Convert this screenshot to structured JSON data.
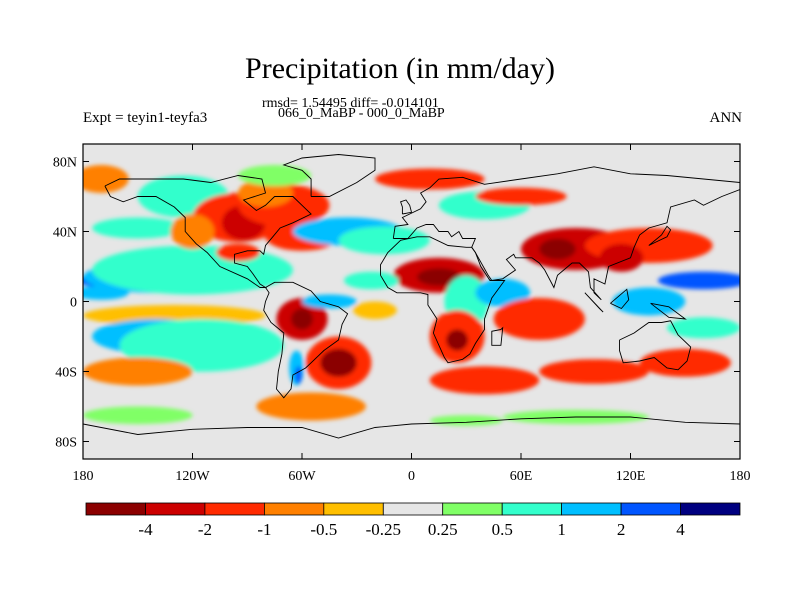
{
  "title": "Precipitation (in mm/day)",
  "stats_line": "rmsd= 1.54495 diff= -0.014101",
  "period_line": "066_0_MaBP - 000_0_MaBP",
  "expt_label": "Expt = teyin1-teyfa3",
  "season_label": "ANN",
  "chart_data": {
    "type": "heatmap",
    "title": "Precipitation (in mm/day)",
    "xlim": [
      -180,
      180
    ],
    "ylim": [
      -90,
      90
    ],
    "x_ticks": [
      {
        "value": -180,
        "label": "180"
      },
      {
        "value": -120,
        "label": "120W"
      },
      {
        "value": -60,
        "label": "60W"
      },
      {
        "value": 0,
        "label": "0"
      },
      {
        "value": 60,
        "label": "60E"
      },
      {
        "value": 120,
        "label": "120E"
      },
      {
        "value": 180,
        "label": "180"
      }
    ],
    "y_ticks": [
      {
        "value": 80,
        "label": "80N"
      },
      {
        "value": 40,
        "label": "40N"
      },
      {
        "value": 0,
        "label": "0"
      },
      {
        "value": -40,
        "label": "40S"
      },
      {
        "value": -80,
        "label": "80S"
      }
    ],
    "colorbar": {
      "colors": [
        "#8b0000",
        "#cc0000",
        "#ff2a00",
        "#ff8000",
        "#ffbf00",
        "#e6e6e6",
        "#80ff66",
        "#33ffcc",
        "#00bfff",
        "#0055ff",
        "#000080"
      ],
      "labels": [
        "-4",
        "-2",
        "-1",
        "-0.5",
        "-0.25",
        "0.25",
        "0.5",
        "1",
        "2",
        "4"
      ]
    },
    "regions": [
      {
        "level": 9,
        "lon": -155,
        "lat": 12,
        "rx": 28,
        "ry": 5
      },
      {
        "level": 8,
        "lon": -140,
        "lat": 14,
        "rx": 40,
        "ry": 9
      },
      {
        "level": 8,
        "lon": -170,
        "lat": 5,
        "rx": 15,
        "ry": 4
      },
      {
        "level": 7,
        "lon": -120,
        "lat": 18,
        "rx": 55,
        "ry": 14
      },
      {
        "level": 4,
        "lon": -130,
        "lat": -8,
        "rx": 50,
        "ry": 6
      },
      {
        "level": 8,
        "lon": -140,
        "lat": -20,
        "rx": 35,
        "ry": 10
      },
      {
        "level": 7,
        "lon": -115,
        "lat": -25,
        "rx": 45,
        "ry": 15
      },
      {
        "level": 3,
        "lon": -150,
        "lat": -40,
        "rx": 30,
        "ry": 8
      },
      {
        "level": 3,
        "lon": -170,
        "lat": 70,
        "rx": 15,
        "ry": 8
      },
      {
        "level": 7,
        "lon": -125,
        "lat": 60,
        "rx": 25,
        "ry": 12
      },
      {
        "level": 9,
        "lon": -110,
        "lat": 50,
        "rx": 8,
        "ry": 6
      },
      {
        "level": 7,
        "lon": -150,
        "lat": 42,
        "rx": 25,
        "ry": 6
      },
      {
        "level": 2,
        "lon": -95,
        "lat": 48,
        "rx": 25,
        "ry": 14
      },
      {
        "level": 1,
        "lon": -92,
        "lat": 45,
        "rx": 12,
        "ry": 10
      },
      {
        "level": 3,
        "lon": -120,
        "lat": 40,
        "rx": 12,
        "ry": 10
      },
      {
        "level": 2,
        "lon": -70,
        "lat": 55,
        "rx": 25,
        "ry": 12
      },
      {
        "level": 3,
        "lon": -80,
        "lat": 62,
        "rx": 15,
        "ry": 8
      },
      {
        "level": 2,
        "lon": -95,
        "lat": 28,
        "rx": 12,
        "ry": 5
      },
      {
        "level": 2,
        "lon": -60,
        "lat": 37,
        "rx": 20,
        "ry": 8
      },
      {
        "level": 6,
        "lon": -75,
        "lat": 72,
        "rx": 20,
        "ry": 6
      },
      {
        "level": 8,
        "lon": -35,
        "lat": 40,
        "rx": 30,
        "ry": 8
      },
      {
        "level": 7,
        "lon": -15,
        "lat": 35,
        "rx": 25,
        "ry": 8
      },
      {
        "level": 7,
        "lon": 40,
        "lat": 55,
        "rx": 25,
        "ry": 8
      },
      {
        "level": 2,
        "lon": 10,
        "lat": 70,
        "rx": 30,
        "ry": 6
      },
      {
        "level": 2,
        "lon": 60,
        "lat": 60,
        "rx": 25,
        "ry": 5
      },
      {
        "level": 1,
        "lon": 15,
        "lat": 15,
        "rx": 25,
        "ry": 10
      },
      {
        "level": 0,
        "lon": 15,
        "lat": 14,
        "rx": 12,
        "ry": 5
      },
      {
        "level": 7,
        "lon": 30,
        "lat": 0,
        "rx": 12,
        "ry": 15
      },
      {
        "level": 2,
        "lon": 25,
        "lat": -20,
        "rx": 15,
        "ry": 15
      },
      {
        "level": 0,
        "lon": 25,
        "lat": -22,
        "rx": 6,
        "ry": 6
      },
      {
        "level": 8,
        "lon": 50,
        "lat": 5,
        "rx": 15,
        "ry": 8
      },
      {
        "level": 2,
        "lon": 70,
        "lat": -10,
        "rx": 25,
        "ry": 12
      },
      {
        "level": 1,
        "lon": 90,
        "lat": 30,
        "rx": 30,
        "ry": 12
      },
      {
        "level": 0,
        "lon": 80,
        "lat": 30,
        "rx": 10,
        "ry": 6
      },
      {
        "level": 2,
        "lon": 130,
        "lat": 32,
        "rx": 35,
        "ry": 10
      },
      {
        "level": 1,
        "lon": 115,
        "lat": 25,
        "rx": 12,
        "ry": 8
      },
      {
        "level": 9,
        "lon": 160,
        "lat": 12,
        "rx": 25,
        "ry": 5
      },
      {
        "level": 8,
        "lon": 130,
        "lat": 0,
        "rx": 20,
        "ry": 8
      },
      {
        "level": 7,
        "lon": 160,
        "lat": -15,
        "rx": 20,
        "ry": 6
      },
      {
        "level": 2,
        "lon": 150,
        "lat": -35,
        "rx": 25,
        "ry": 8
      },
      {
        "level": 2,
        "lon": 100,
        "lat": -40,
        "rx": 30,
        "ry": 7
      },
      {
        "level": 2,
        "lon": 40,
        "lat": -45,
        "rx": 30,
        "ry": 8
      },
      {
        "level": 1,
        "lon": -60,
        "lat": -10,
        "rx": 14,
        "ry": 12
      },
      {
        "level": 0,
        "lon": -60,
        "lat": -10,
        "rx": 6,
        "ry": 6
      },
      {
        "level": 8,
        "lon": -45,
        "lat": 0,
        "rx": 15,
        "ry": 4
      },
      {
        "level": 2,
        "lon": -40,
        "lat": -35,
        "rx": 18,
        "ry": 15
      },
      {
        "level": 0,
        "lon": -40,
        "lat": -35,
        "rx": 10,
        "ry": 8
      },
      {
        "level": 8,
        "lon": -63,
        "lat": -38,
        "rx": 4,
        "ry": 10
      },
      {
        "level": 9,
        "lon": -62,
        "lat": -42,
        "rx": 2,
        "ry": 5
      },
      {
        "level": 3,
        "lon": -55,
        "lat": -60,
        "rx": 30,
        "ry": 8
      },
      {
        "level": 4,
        "lon": -20,
        "lat": -5,
        "rx": 12,
        "ry": 5
      },
      {
        "level": 7,
        "lon": -22,
        "lat": 12,
        "rx": 15,
        "ry": 5
      },
      {
        "level": 6,
        "lon": -150,
        "lat": -65,
        "rx": 30,
        "ry": 5
      },
      {
        "level": 6,
        "lon": 90,
        "lat": -66,
        "rx": 40,
        "ry": 4
      },
      {
        "level": 6,
        "lon": 30,
        "lat": -68,
        "rx": 20,
        "ry": 3
      }
    ],
    "coastlines": [
      [
        [
          -168,
          66
        ],
        [
          -160,
          70
        ],
        [
          -140,
          70
        ],
        [
          -125,
          70
        ],
        [
          -110,
          68
        ],
        [
          -95,
          72
        ],
        [
          -82,
          70
        ],
        [
          -80,
          62
        ],
        [
          -92,
          58
        ],
        [
          -85,
          52
        ],
        [
          -80,
          55
        ],
        [
          -75,
          60
        ],
        [
          -65,
          60
        ],
        [
          -60,
          55
        ],
        [
          -55,
          50
        ],
        [
          -65,
          45
        ],
        [
          -72,
          42
        ],
        [
          -76,
          37
        ],
        [
          -80,
          32
        ],
        [
          -81,
          27
        ],
        [
          -83,
          29
        ],
        [
          -90,
          29
        ],
        [
          -97,
          27
        ],
        [
          -97,
          22
        ],
        [
          -90,
          20
        ],
        [
          -87,
          16
        ],
        [
          -83,
          10
        ],
        [
          -80,
          8
        ],
        [
          -83,
          8
        ],
        [
          -90,
          13
        ],
        [
          -105,
          20
        ],
        [
          -112,
          28
        ],
        [
          -118,
          33
        ],
        [
          -124,
          40
        ],
        [
          -124,
          48
        ],
        [
          -130,
          54
        ],
        [
          -140,
          60
        ],
        [
          -150,
          60
        ],
        [
          -158,
          57
        ],
        [
          -165,
          60
        ],
        [
          -168,
          66
        ]
      ],
      [
        [
          -80,
          8
        ],
        [
          -75,
          11
        ],
        [
          -65,
          11
        ],
        [
          -55,
          6
        ],
        [
          -50,
          0
        ],
        [
          -40,
          -3
        ],
        [
          -35,
          -7
        ],
        [
          -38,
          -13
        ],
        [
          -40,
          -22
        ],
        [
          -48,
          -28
        ],
        [
          -55,
          -35
        ],
        [
          -58,
          -38
        ],
        [
          -65,
          -42
        ],
        [
          -66,
          -50
        ],
        [
          -70,
          -55
        ],
        [
          -74,
          -50
        ],
        [
          -73,
          -40
        ],
        [
          -71,
          -30
        ],
        [
          -70,
          -18
        ],
        [
          -77,
          -12
        ],
        [
          -81,
          -5
        ],
        [
          -80,
          0
        ],
        [
          -78,
          5
        ],
        [
          -80,
          8
        ]
      ],
      [
        [
          -55,
          60
        ],
        [
          -45,
          60
        ],
        [
          -30,
          68
        ],
        [
          -20,
          75
        ],
        [
          -20,
          82
        ],
        [
          -40,
          84
        ],
        [
          -60,
          82
        ],
        [
          -70,
          78
        ],
        [
          -60,
          75
        ],
        [
          -55,
          70
        ],
        [
          -55,
          60
        ]
      ],
      [
        [
          -10,
          36
        ],
        [
          -9,
          43
        ],
        [
          -2,
          44
        ],
        [
          -5,
          48
        ],
        [
          5,
          53
        ],
        [
          8,
          57
        ],
        [
          5,
          62
        ],
        [
          10,
          65
        ],
        [
          15,
          70
        ],
        [
          28,
          71
        ],
        [
          40,
          67
        ],
        [
          60,
          70
        ],
        [
          80,
          73
        ],
        [
          100,
          77
        ],
        [
          120,
          73
        ],
        [
          140,
          72
        ],
        [
          160,
          70
        ],
        [
          180,
          68
        ],
        [
          180,
          64
        ],
        [
          170,
          60
        ],
        [
          160,
          55
        ],
        [
          155,
          58
        ],
        [
          142,
          54
        ],
        [
          140,
          45
        ],
        [
          130,
          42
        ],
        [
          125,
          38
        ],
        [
          122,
          31
        ],
        [
          120,
          25
        ],
        [
          108,
          20
        ],
        [
          106,
          10
        ],
        [
          100,
          13
        ],
        [
          100,
          5
        ],
        [
          104,
          1
        ],
        [
          98,
          8
        ],
        [
          97,
          17
        ],
        [
          92,
          22
        ],
        [
          88,
          22
        ],
        [
          80,
          15
        ],
        [
          78,
          8
        ],
        [
          73,
          18
        ],
        [
          70,
          22
        ],
        [
          66,
          25
        ],
        [
          57,
          25
        ],
        [
          56,
          27
        ],
        [
          52,
          24
        ],
        [
          57,
          18
        ],
        [
          50,
          13
        ],
        [
          44,
          12
        ],
        [
          42,
          15
        ],
        [
          35,
          28
        ],
        [
          33,
          31
        ],
        [
          35,
          36
        ],
        [
          28,
          36
        ],
        [
          26,
          40
        ],
        [
          22,
          37
        ],
        [
          20,
          40
        ],
        [
          15,
          40
        ],
        [
          12,
          44
        ],
        [
          8,
          44
        ],
        [
          3,
          42
        ],
        [
          -2,
          36
        ],
        [
          -5,
          36
        ],
        [
          -10,
          36
        ]
      ],
      [
        [
          -17,
          15
        ],
        [
          -17,
          21
        ],
        [
          -13,
          28
        ],
        [
          -6,
          35
        ],
        [
          3,
          37
        ],
        [
          10,
          37
        ],
        [
          20,
          32
        ],
        [
          30,
          31
        ],
        [
          33,
          31
        ],
        [
          35,
          28
        ],
        [
          38,
          20
        ],
        [
          43,
          12
        ],
        [
          51,
          12
        ],
        [
          44,
          2
        ],
        [
          40,
          -10
        ],
        [
          40,
          -16
        ],
        [
          35,
          -24
        ],
        [
          32,
          -30
        ],
        [
          28,
          -33
        ],
        [
          20,
          -35
        ],
        [
          18,
          -32
        ],
        [
          12,
          -18
        ],
        [
          14,
          -10
        ],
        [
          9,
          -2
        ],
        [
          9,
          4
        ],
        [
          5,
          5
        ],
        [
          -5,
          5
        ],
        [
          -8,
          5
        ],
        [
          -13,
          8
        ],
        [
          -17,
          15
        ]
      ],
      [
        [
          114,
          -22
        ],
        [
          122,
          -18
        ],
        [
          130,
          -12
        ],
        [
          137,
          -12
        ],
        [
          142,
          -11
        ],
        [
          146,
          -19
        ],
        [
          153,
          -26
        ],
        [
          151,
          -34
        ],
        [
          146,
          -39
        ],
        [
          140,
          -38
        ],
        [
          133,
          -32
        ],
        [
          125,
          -34
        ],
        [
          116,
          -35
        ],
        [
          114,
          -28
        ],
        [
          114,
          -22
        ]
      ],
      [
        [
          -180,
          -70
        ],
        [
          -150,
          -76
        ],
        [
          -120,
          -73
        ],
        [
          -90,
          -72
        ],
        [
          -60,
          -72
        ],
        [
          -40,
          -78
        ],
        [
          -20,
          -72
        ],
        [
          0,
          -70
        ],
        [
          30,
          -69
        ],
        [
          60,
          -67
        ],
        [
          90,
          -66
        ],
        [
          120,
          -66
        ],
        [
          150,
          -69
        ],
        [
          180,
          -70
        ]
      ],
      [
        [
          49,
          -16
        ],
        [
          50,
          -15
        ],
        [
          49,
          -25
        ],
        [
          44,
          -25
        ],
        [
          44,
          -17
        ],
        [
          49,
          -16
        ]
      ],
      [
        [
          130,
          32
        ],
        [
          134,
          34
        ],
        [
          140,
          37
        ],
        [
          142,
          41
        ],
        [
          140,
          43
        ],
        [
          137,
          38
        ],
        [
          130,
          32
        ]
      ],
      [
        [
          95,
          5
        ],
        [
          105,
          -6
        ],
        [
          103,
          -4
        ],
        [
          95,
          5
        ]
      ],
      [
        [
          109,
          -1
        ],
        [
          118,
          7
        ],
        [
          119,
          1
        ],
        [
          115,
          -4
        ],
        [
          109,
          -1
        ]
      ],
      [
        [
          131,
          -1
        ],
        [
          141,
          -3
        ],
        [
          150,
          -10
        ],
        [
          141,
          -9
        ],
        [
          131,
          -1
        ]
      ],
      [
        [
          -5,
          50
        ],
        [
          0,
          51
        ],
        [
          -1,
          55
        ],
        [
          -3,
          58
        ],
        [
          -6,
          57
        ],
        [
          -5,
          54
        ],
        [
          -5,
          50
        ]
      ]
    ]
  }
}
